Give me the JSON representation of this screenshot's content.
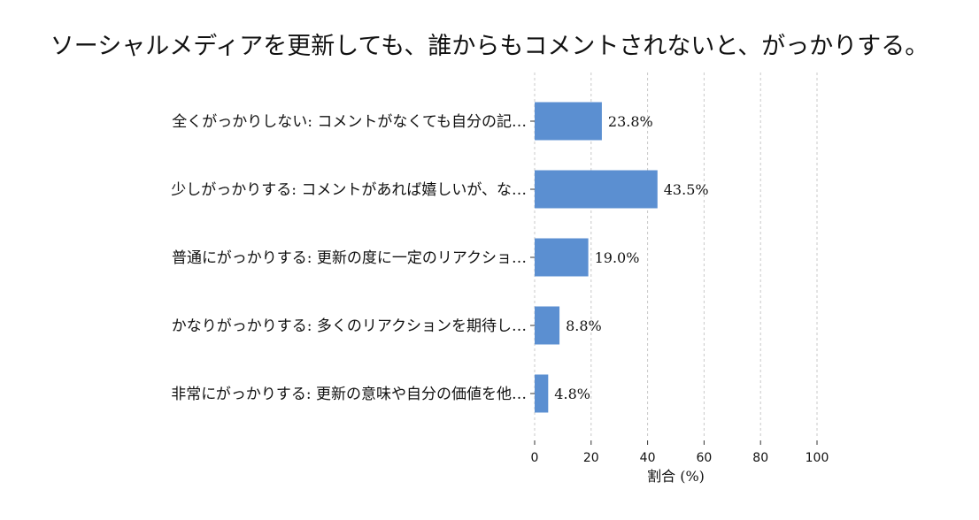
{
  "chart_data": {
    "type": "bar",
    "orientation": "horizontal",
    "title": "ソーシャルメディアを更新しても、誰からもコメントされないと、がっかりする。",
    "xlabel": "割合 (%)",
    "ylabel": "",
    "xlim": [
      0,
      100
    ],
    "xticks": [
      "0",
      "20",
      "40",
      "60",
      "80",
      "100"
    ],
    "grid": true,
    "bar_color": "#5b8fd1",
    "categories": [
      "全くがっかりしない: コメントがなくても自分の記…",
      "少しがっかりする: コメントがあれば嬉しいが、な…",
      "普通にがっかりする: 更新の度に一定のリアクショ…",
      "かなりがっかりする: 多くのリアクションを期待し…",
      "非常にがっかりする: 更新の意味や自分の価値を他…"
    ],
    "values": [
      23.8,
      43.5,
      19.0,
      8.8,
      4.8
    ],
    "value_labels": [
      "23.8%",
      "43.5%",
      "19.0%",
      "8.8%",
      "4.8%"
    ]
  }
}
